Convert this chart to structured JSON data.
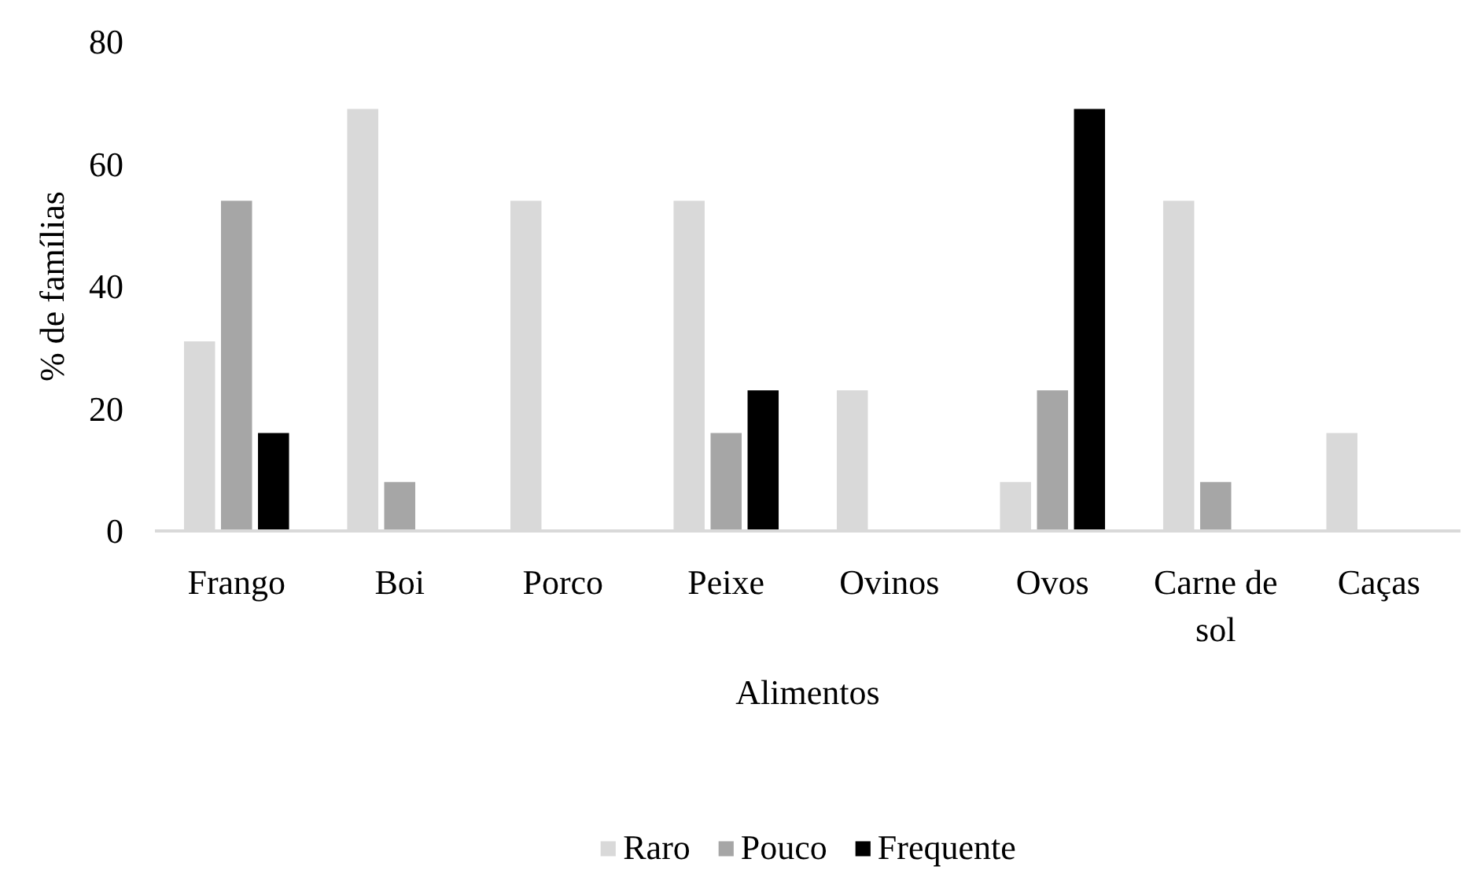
{
  "chart_data": {
    "type": "bar",
    "xlabel": "Alimentos",
    "ylabel": "% de famílias",
    "categories": [
      "Frango",
      "Boi",
      "Porco",
      "Peixe",
      "Ovinos",
      "Ovos",
      "Carne de sol",
      "Caças"
    ],
    "series": [
      {
        "name": "Raro",
        "color": "#d9d9d9",
        "values": [
          31,
          69,
          54,
          54,
          23,
          8,
          54,
          16
        ]
      },
      {
        "name": "Pouco",
        "color": "#a6a6a6",
        "values": [
          54,
          8,
          0,
          16,
          0,
          23,
          8,
          0
        ]
      },
      {
        "name": "Frequente",
        "color": "#000000",
        "values": [
          16,
          0,
          0,
          23,
          0,
          69,
          0,
          0
        ]
      }
    ],
    "ylim": [
      0,
      80
    ],
    "yticks": [
      0,
      20,
      40,
      60,
      80
    ],
    "grid": false,
    "legend": "bottom"
  }
}
